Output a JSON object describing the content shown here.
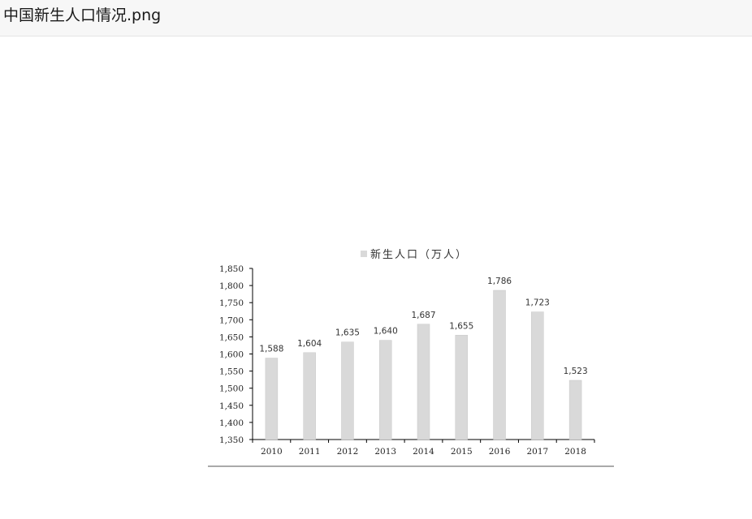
{
  "window": {
    "title": "中国新生人口情况.png"
  },
  "chart_data": {
    "type": "bar",
    "categories": [
      "2010",
      "2011",
      "2012",
      "2013",
      "2014",
      "2015",
      "2016",
      "2017",
      "2018"
    ],
    "series": [
      {
        "name": "新生人口（万人）",
        "values": [
          1588,
          1604,
          1635,
          1640,
          1687,
          1655,
          1786,
          1723,
          1523
        ],
        "data_labels": [
          "1,588",
          "1,604",
          "1,635",
          "1,640",
          "1,687",
          "1,655",
          "1,786",
          "1,723",
          "1,523"
        ]
      }
    ],
    "title": "",
    "xlabel": "",
    "ylabel": "",
    "ylim": [
      1350,
      1850
    ],
    "yticks": [
      1350,
      1400,
      1450,
      1500,
      1550,
      1600,
      1650,
      1700,
      1750,
      1800,
      1850
    ],
    "ytick_labels": [
      "1,350",
      "1,400",
      "1,450",
      "1,500",
      "1,550",
      "1,600",
      "1,650",
      "1,700",
      "1,750",
      "1,800",
      "1,850"
    ],
    "grid": false,
    "legend_position": "top-center",
    "colors": {
      "bar": "#d9d9d9",
      "bar_stroke": "#c8c8c8",
      "axis": "#000000",
      "text": "#222222"
    }
  }
}
